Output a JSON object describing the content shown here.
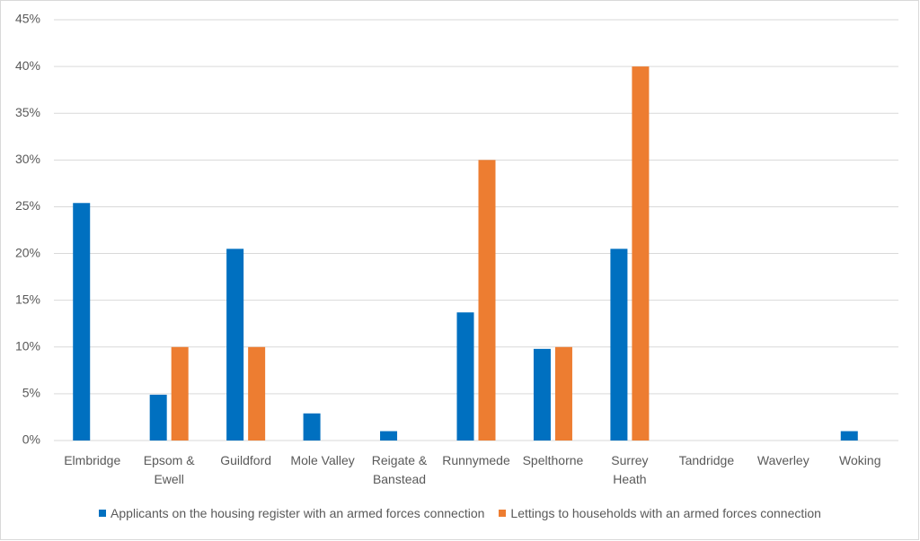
{
  "chart_data": {
    "type": "bar",
    "categories": [
      "Elmbridge",
      "Epsom & Ewell",
      "Guildford",
      "Mole Valley",
      "Reigate & Banstead",
      "Runnymede",
      "Spelthorne",
      "Surrey Heath",
      "Tandridge",
      "Waverley",
      "Woking"
    ],
    "series": [
      {
        "name": "Applicants on the housing register with an armed forces connection",
        "color": "#0070c0",
        "values": [
          25.4,
          4.9,
          20.5,
          2.9,
          1.0,
          13.7,
          9.8,
          20.5,
          0,
          0,
          1.0
        ]
      },
      {
        "name": "Lettings to households with an armed forces connection",
        "color": "#ed7d31",
        "values": [
          0,
          10,
          10,
          0,
          0,
          30,
          10,
          40,
          0,
          0,
          0
        ]
      }
    ],
    "ylim": [
      0,
      45
    ],
    "yticks": [
      {
        "value": 0,
        "label": "0%"
      },
      {
        "value": 5,
        "label": "5%"
      },
      {
        "value": 10,
        "label": "10%"
      },
      {
        "value": 15,
        "label": "15%"
      },
      {
        "value": 20,
        "label": "20%"
      },
      {
        "value": 25,
        "label": "25%"
      },
      {
        "value": 30,
        "label": "30%"
      },
      {
        "value": 35,
        "label": "35%"
      },
      {
        "value": 40,
        "label": "40%"
      },
      {
        "value": 45,
        "label": "45%"
      }
    ],
    "grid": true,
    "legend": "bottom"
  }
}
